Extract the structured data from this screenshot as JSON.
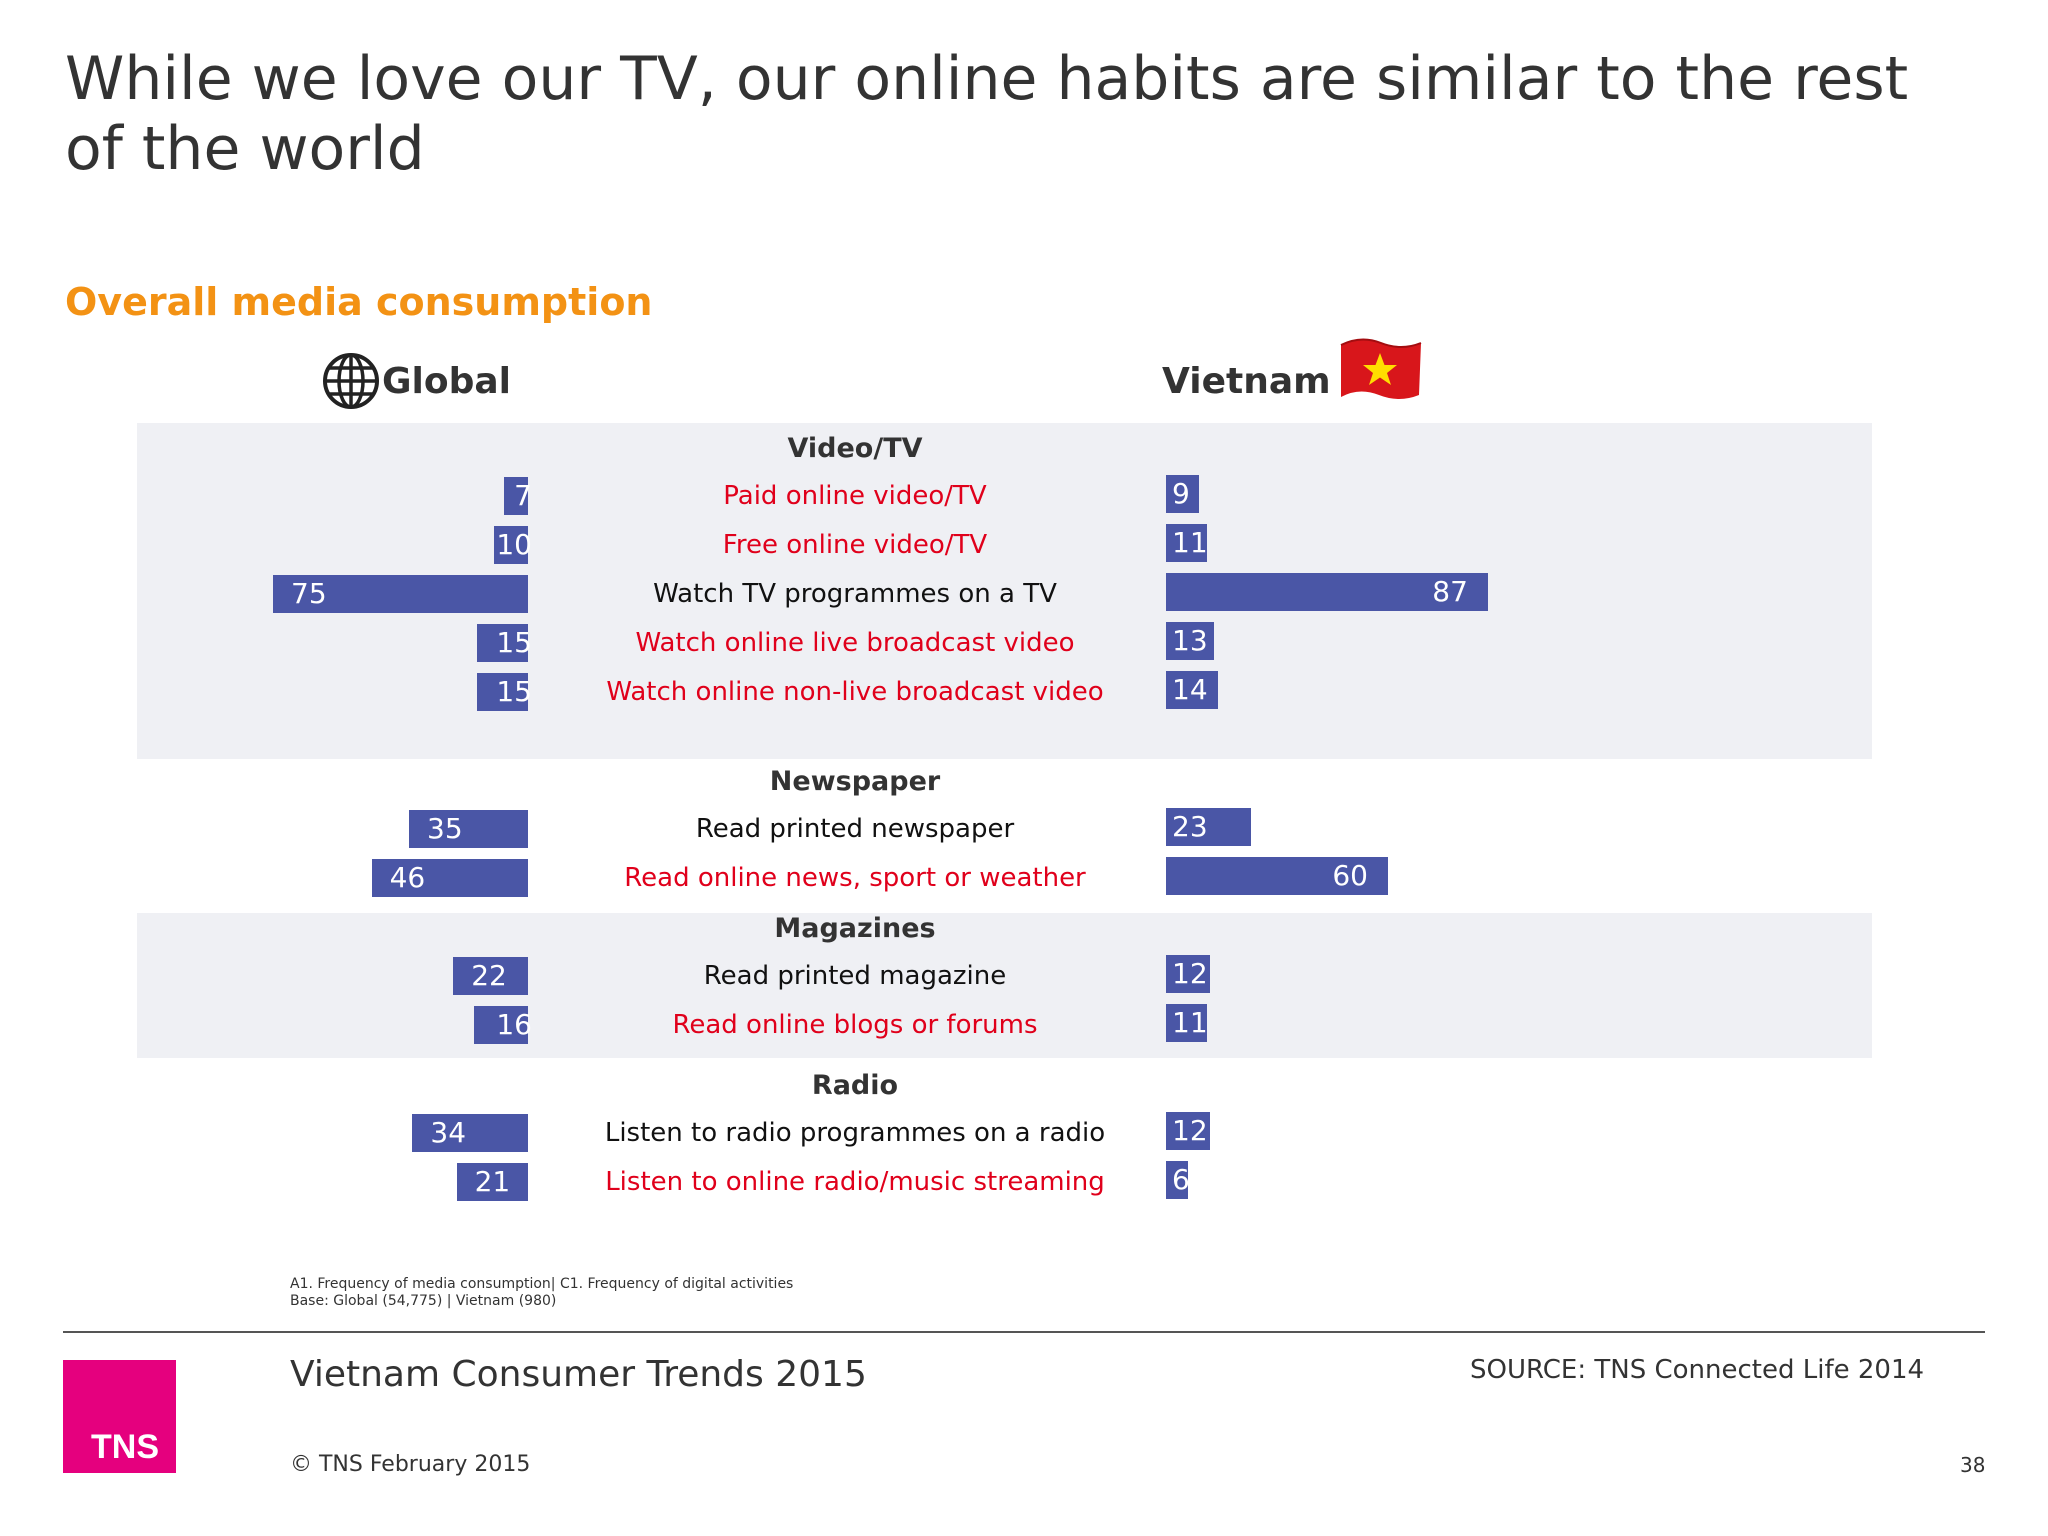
{
  "title": "While we love our TV, our online habits are similar to the rest of the world",
  "subtitle": "Overall media consumption",
  "headers": {
    "global": "Global",
    "vietnam": "Vietnam"
  },
  "colors": {
    "bar": "#4a56a6",
    "online_label": "#e0001b",
    "offline_label": "#111111",
    "accent": "#f39214",
    "brand": "#e5007e"
  },
  "icons": {
    "global": "globe-icon",
    "vietnam": "vietnam-flag-icon"
  },
  "chart_data": {
    "type": "bar",
    "series": [
      {
        "name": "Global"
      },
      {
        "name": "Vietnam"
      }
    ],
    "groups": [
      {
        "category": "Video/TV",
        "items": [
          {
            "label": "Paid online video/TV",
            "online": true,
            "global": 7,
            "vietnam": 9
          },
          {
            "label": "Free online video/TV",
            "online": true,
            "global": 10,
            "vietnam": 11
          },
          {
            "label": "Watch TV programmes on a TV",
            "online": false,
            "global": 75,
            "vietnam": 87
          },
          {
            "label": "Watch online live broadcast video",
            "online": true,
            "global": 15,
            "vietnam": 13
          },
          {
            "label": "Watch online non-live broadcast video",
            "online": true,
            "global": 15,
            "vietnam": 14
          }
        ]
      },
      {
        "category": "Newspaper",
        "items": [
          {
            "label": "Read printed newspaper",
            "online": false,
            "global": 35,
            "vietnam": 23
          },
          {
            "label": "Read online news, sport or weather",
            "online": true,
            "global": 46,
            "vietnam": 60
          }
        ]
      },
      {
        "category": "Magazines",
        "items": [
          {
            "label": "Read printed magazine",
            "online": false,
            "global": 22,
            "vietnam": 12
          },
          {
            "label": "Read online blogs or forums",
            "online": true,
            "global": 16,
            "vietnam": 11
          }
        ]
      },
      {
        "category": "Radio",
        "items": [
          {
            "label": "Listen to radio programmes on a radio",
            "online": false,
            "global": 34,
            "vietnam": 12
          },
          {
            "label": "Listen to online radio/music streaming",
            "online": true,
            "global": 21,
            "vietnam": 6
          }
        ]
      }
    ]
  },
  "footnote": {
    "line1": "A1. Frequency of media consumption| C1. Frequency of digital activities",
    "line2": "Base: Global (54,775) | Vietnam (980)"
  },
  "footer": {
    "title": "Vietnam Consumer Trends 2015",
    "source": "SOURCE: TNS Connected Life 2014",
    "copyright": "© TNS February 2015",
    "page_number": "38",
    "logo_text": "TNS"
  }
}
